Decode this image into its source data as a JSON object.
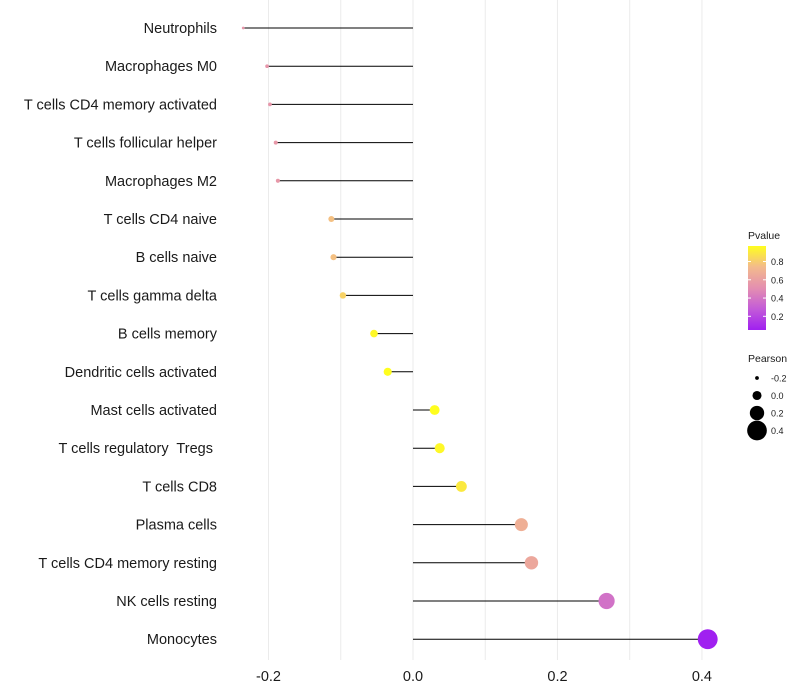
{
  "chart_data": {
    "type": "lollipop",
    "title": "",
    "xlabel": "",
    "ylabel": "",
    "xlim": [
      -0.245,
      0.425
    ],
    "x_ticks": [
      -0.2,
      0.0,
      0.2,
      0.4
    ],
    "x_tick_labels": [
      "-0.2",
      "0.0",
      "0.2",
      "0.4"
    ],
    "grid": true,
    "categories": [
      "Neutrophils",
      "Macrophages M0",
      "T cells CD4 memory activated",
      "T cells follicular helper",
      "Macrophages M2",
      "T cells CD4 naive",
      "B cells naive",
      "T cells gamma delta",
      "B cells memory",
      "Dendritic cells activated",
      "Mast cells activated",
      "T cells regulatory  Tregs ",
      "T cells CD8",
      "Plasma cells",
      "T cells CD4 memory resting",
      "NK cells resting",
      "Monocytes"
    ],
    "pearson": [
      -0.235,
      -0.202,
      -0.198,
      -0.19,
      -0.187,
      -0.113,
      -0.11,
      -0.097,
      -0.054,
      -0.035,
      0.03,
      0.037,
      0.067,
      0.15,
      0.164,
      0.268,
      0.408
    ],
    "pvalue": [
      0.55,
      0.55,
      0.55,
      0.56,
      0.56,
      0.76,
      0.76,
      0.82,
      0.95,
      0.97,
      0.97,
      0.95,
      0.9,
      0.68,
      0.64,
      0.38,
      0.05
    ],
    "legends": {
      "color": {
        "title": "Pvalue",
        "breaks": [
          "0.8",
          "0.6",
          "0.4",
          "0.2"
        ],
        "break_values": [
          0.8,
          0.6,
          0.4,
          0.2
        ],
        "range": [
          0.05,
          0.97
        ],
        "colors_low_to_high": [
          "#a020f0",
          "#c35bd8",
          "#e48fb0",
          "#f3ba8c",
          "#fffe1e"
        ]
      },
      "size": {
        "title": "Pearson",
        "breaks": [
          "-0.2",
          "0.0",
          "0.2",
          "0.4"
        ],
        "break_values": [
          -0.2,
          0.0,
          0.2,
          0.4
        ]
      }
    }
  }
}
